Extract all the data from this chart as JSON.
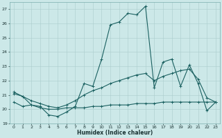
{
  "xlabel": "Humidex (Indice chaleur)",
  "background_color": "#cce8e8",
  "grid_color": "#aacccc",
  "line_color": "#1a6060",
  "xlim": [
    -0.5,
    23.5
  ],
  "ylim": [
    19,
    27.5
  ],
  "yticks": [
    19,
    20,
    21,
    22,
    23,
    24,
    25,
    26,
    27
  ],
  "xticks": [
    0,
    1,
    2,
    3,
    4,
    5,
    6,
    7,
    8,
    9,
    10,
    11,
    12,
    13,
    14,
    15,
    16,
    17,
    18,
    19,
    20,
    21,
    22,
    23
  ],
  "series": [
    {
      "x": [
        0,
        1,
        2,
        3,
        4,
        5,
        6,
        7,
        8,
        9,
        10,
        11,
        12,
        13,
        14,
        15,
        16,
        17,
        18,
        19,
        20,
        21,
        22,
        23
      ],
      "y": [
        21.2,
        20.9,
        20.3,
        20.2,
        19.6,
        19.5,
        19.8,
        20.2,
        21.8,
        21.6,
        23.5,
        25.9,
        26.1,
        26.7,
        26.6,
        27.2,
        21.5,
        23.3,
        23.5,
        21.6,
        23.1,
        21.8,
        19.9,
        20.5
      ]
    },
    {
      "x": [
        0,
        1,
        2,
        3,
        4,
        5,
        6,
        7,
        8,
        9,
        10,
        11,
        12,
        13,
        14,
        15,
        16,
        17,
        18,
        19,
        20,
        21,
        22,
        23
      ],
      "y": [
        20.5,
        20.2,
        20.3,
        20.1,
        20.0,
        20.0,
        20.1,
        20.1,
        20.1,
        20.2,
        20.2,
        20.3,
        20.3,
        20.3,
        20.4,
        20.4,
        20.4,
        20.5,
        20.5,
        20.5,
        20.5,
        20.5,
        20.5,
        20.5
      ]
    },
    {
      "x": [
        0,
        1,
        2,
        3,
        4,
        5,
        6,
        7,
        8,
        9,
        10,
        11,
        12,
        13,
        14,
        15,
        16,
        17,
        18,
        19,
        20,
        21,
        22,
        23
      ],
      "y": [
        21.1,
        20.9,
        20.6,
        20.4,
        20.2,
        20.1,
        20.3,
        20.6,
        21.0,
        21.3,
        21.5,
        21.8,
        22.0,
        22.2,
        22.4,
        22.5,
        22.0,
        22.3,
        22.5,
        22.7,
        22.8,
        22.1,
        20.8,
        20.5
      ]
    }
  ]
}
